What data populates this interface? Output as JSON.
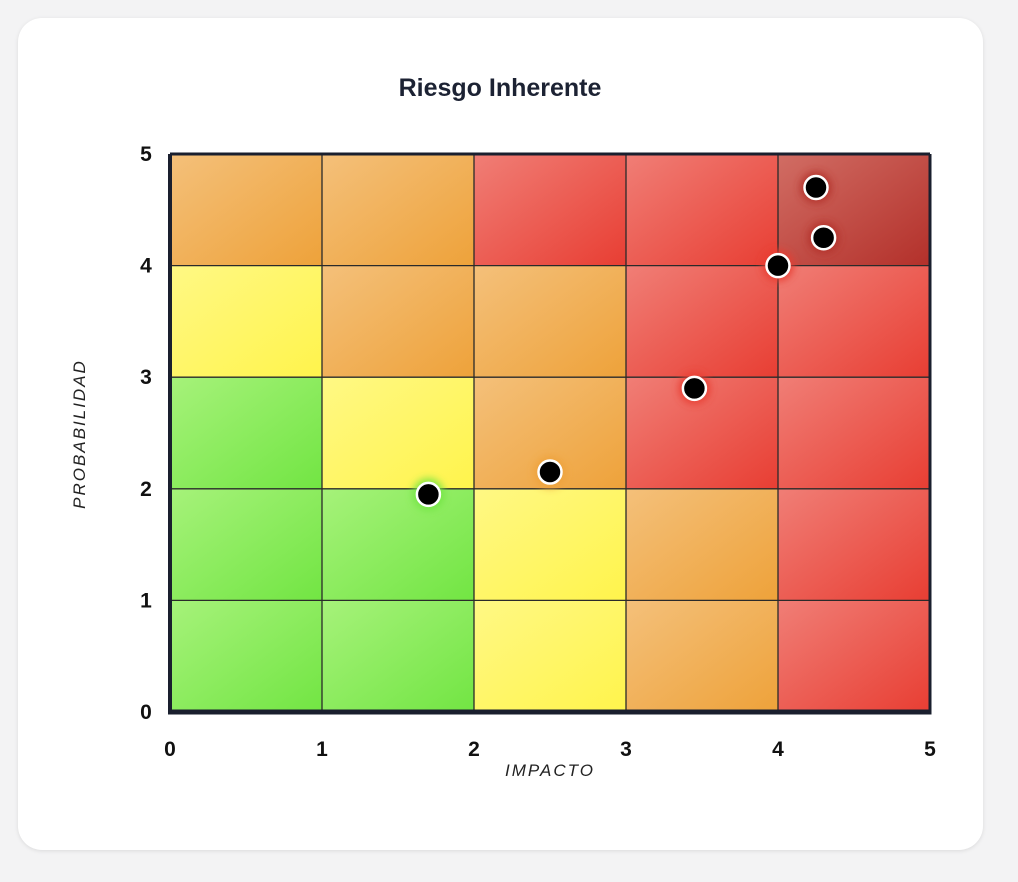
{
  "chart_data": {
    "type": "scatter",
    "title": "Riesgo Inherente",
    "xlabel": "IMPACTO",
    "ylabel": "PROBABILIDAD",
    "xlim": [
      0,
      5
    ],
    "ylim": [
      0,
      5
    ],
    "x_ticks": [
      "0",
      "1",
      "2",
      "3",
      "4",
      "5"
    ],
    "y_ticks": [
      "0",
      "1",
      "2",
      "3",
      "4",
      "5"
    ],
    "grid": true,
    "legend": "none",
    "heatmap_rows_top_to_bottom": [
      [
        "orange",
        "orange",
        "red",
        "red",
        "dark-red"
      ],
      [
        "yellow",
        "orange",
        "orange",
        "red",
        "red"
      ],
      [
        "green",
        "yellow",
        "orange",
        "red",
        "red"
      ],
      [
        "green",
        "green",
        "yellow",
        "orange",
        "red"
      ],
      [
        "green",
        "green",
        "yellow",
        "orange",
        "red"
      ]
    ],
    "colors": {
      "green": [
        "#a6f27a",
        "#72e543"
      ],
      "yellow": [
        "#fff884",
        "#fff44c"
      ],
      "orange": [
        "#f4c07a",
        "#eea23a"
      ],
      "red": [
        "#f07e76",
        "#e83e33"
      ],
      "dark-red": [
        "#d16d64",
        "#b3302a"
      ]
    },
    "points": [
      {
        "x": 1.7,
        "y": 1.95,
        "zone": "green"
      },
      {
        "x": 2.5,
        "y": 2.15,
        "zone": "orange"
      },
      {
        "x": 3.45,
        "y": 2.9,
        "zone": "red"
      },
      {
        "x": 4.0,
        "y": 4.0,
        "zone": "red"
      },
      {
        "x": 4.25,
        "y": 4.7,
        "zone": "dark-red"
      },
      {
        "x": 4.3,
        "y": 4.25,
        "zone": "dark-red"
      }
    ]
  }
}
